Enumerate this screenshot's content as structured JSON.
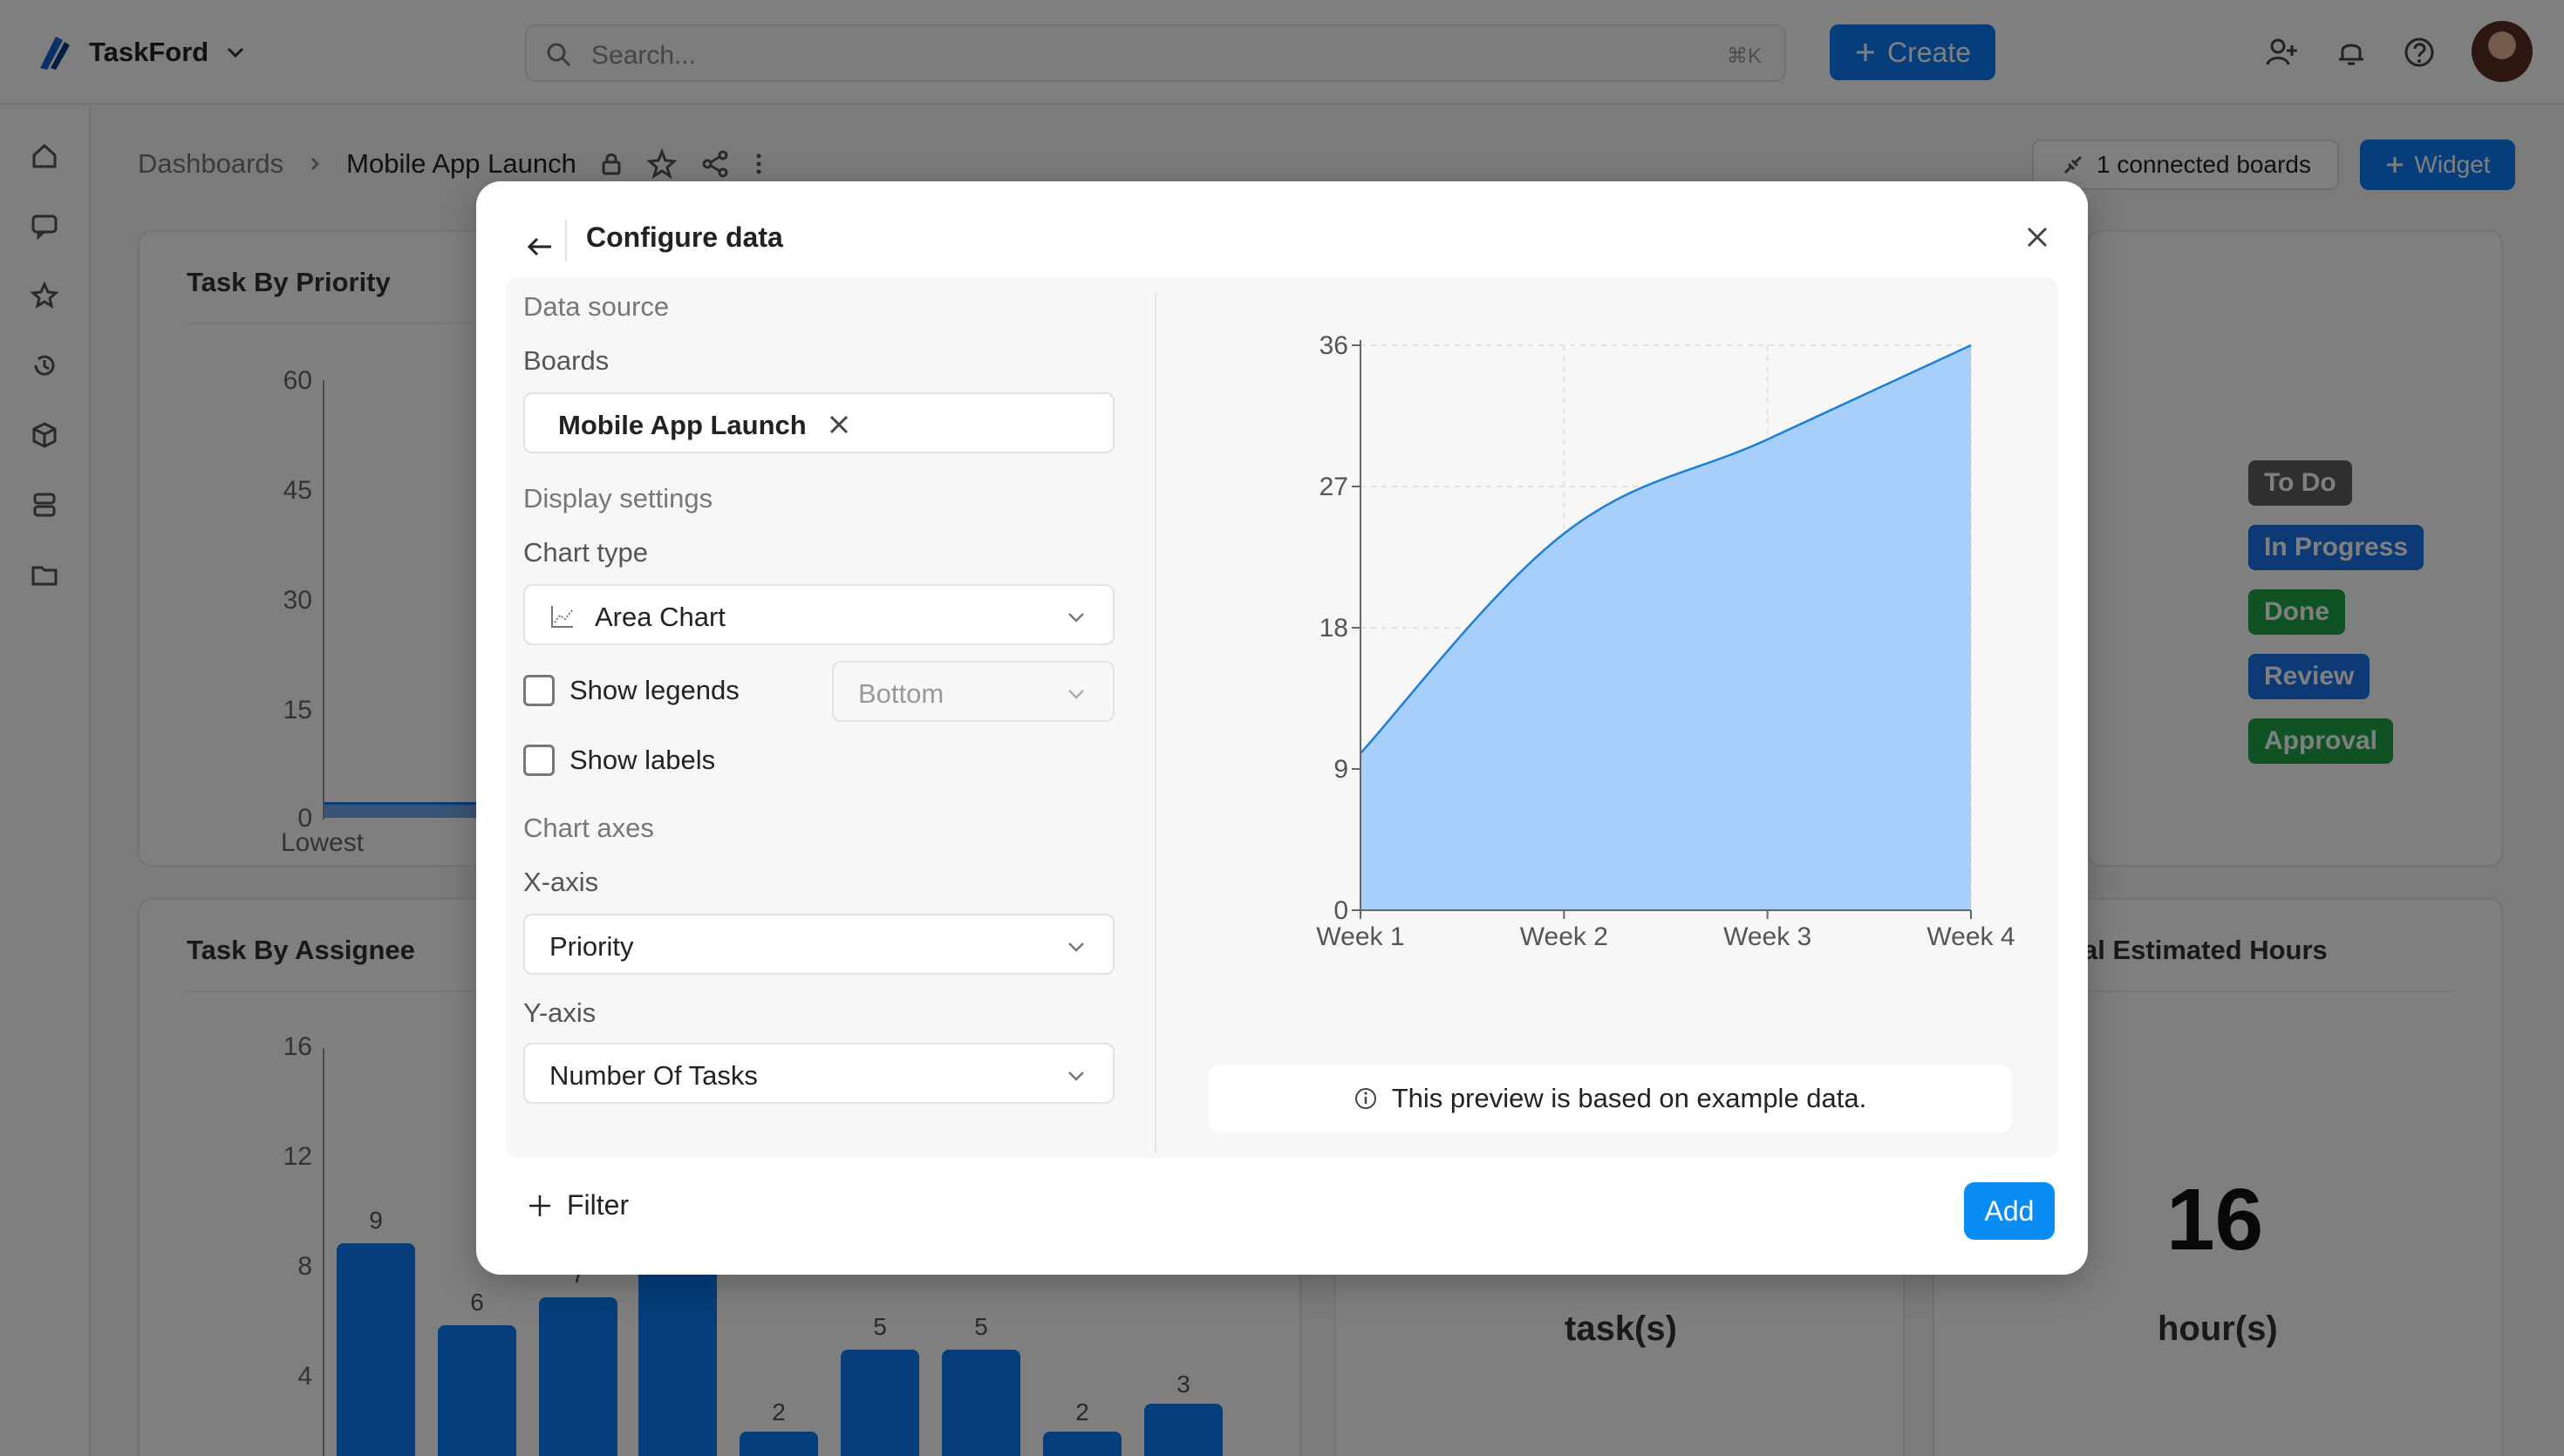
{
  "app": {
    "name": "TaskFord"
  },
  "search": {
    "placeholder": "Search...",
    "shortcut": "⌘K"
  },
  "toolbar": {
    "create_label": "Create"
  },
  "breadcrumb": {
    "root": "Dashboards",
    "current": "Mobile App Launch"
  },
  "dashboard_actions": {
    "connected_boards": "1 connected boards",
    "widget_label": "Widget"
  },
  "cards": {
    "priority": {
      "title": "Task By Priority",
      "y_ticks": [
        "60",
        "45",
        "30",
        "15",
        "0"
      ],
      "x_first": "Lowest"
    },
    "assignee": {
      "title": "Task By Assignee",
      "y_ticks": [
        "16",
        "12",
        "8",
        "4"
      ],
      "bar_values": [
        "9",
        "6",
        "7",
        "",
        "2",
        "5",
        "5",
        "2",
        "3"
      ]
    },
    "statuses": [
      "To Do",
      "In Progress",
      "Done",
      "Review",
      "Approval"
    ],
    "status_colors": [
      "#5f5f5f",
      "#1a73e8",
      "#1ea446",
      "#1a73e8",
      "#1ea446"
    ],
    "tasks_unit": "task(s)",
    "hours": {
      "title": "al Estimated Hours",
      "value": "16",
      "unit": "hour(s)"
    }
  },
  "modal": {
    "title": "Configure data",
    "data_source_label": "Data source",
    "boards_label": "Boards",
    "board_chip": "Mobile App Launch",
    "display_settings_label": "Display settings",
    "chart_type_label": "Chart type",
    "chart_type_value": "Area Chart",
    "show_legends_label": "Show legends",
    "show_legends_checked": false,
    "legend_position": "Bottom",
    "show_labels_label": "Show labels",
    "show_labels_checked": false,
    "chart_axes_label": "Chart axes",
    "x_axis_label": "X-axis",
    "x_axis_value": "Priority",
    "y_axis_label": "Y-axis",
    "y_axis_value": "Number Of Tasks",
    "preview_note": "This preview is based on example data.",
    "filter_label": "Filter",
    "add_label": "Add"
  },
  "chart_data": {
    "type": "area",
    "categories": [
      "Week 1",
      "Week 2",
      "Week 3",
      "Week 4"
    ],
    "values": [
      10,
      24,
      30,
      36
    ],
    "y_ticks": [
      0,
      9,
      18,
      27,
      36
    ],
    "ylim": [
      0,
      36
    ],
    "grid": true,
    "fill_color": "#a8cffc",
    "line_color": "#1a7fd8"
  }
}
